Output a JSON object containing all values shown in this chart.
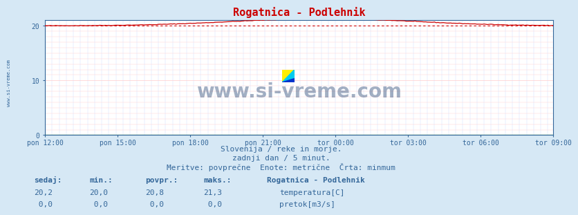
{
  "title": "Rogatnica - Podlehnik",
  "bg_color": "#d6e8f5",
  "plot_bg_color": "#ffffff",
  "grid_color_h": "#ffcccc",
  "grid_color_v": "#ccddff",
  "x_labels": [
    "pon 12:00",
    "pon 15:00",
    "pon 18:00",
    "pon 21:00",
    "tor 00:00",
    "tor 03:00",
    "tor 06:00",
    "tor 09:00"
  ],
  "n_points": 288,
  "ylim": [
    0,
    21
  ],
  "yticks": [
    0,
    10,
    20
  ],
  "temp_min": 20.0,
  "temp_max": 21.3,
  "temp_avg": 20.8,
  "temp_current": 20.2,
  "temp_line_color": "#cc0000",
  "flow_line_color": "#007700",
  "min_line_color": "#cc0000",
  "watermark": "www.si-vreme.com",
  "watermark_color": "#1a3a6a",
  "side_text": "www.si-vreme.com",
  "subtitle1": "Slovenija / reke in morje.",
  "subtitle2": "zadnji dan / 5 minut.",
  "subtitle3": "Meritve: povprečne  Enote: metrične  Črta: minmum",
  "footer_header": "Rogatnica - Podlehnik",
  "col_sedaj": "sedaj:",
  "col_min": "min.:",
  "col_povpr": "povpr.:",
  "col_maks": "maks.:",
  "val_sedaj_t": "20,2",
  "val_min_t": "20,0",
  "val_povpr_t": "20,8",
  "val_maks_t": "21,3",
  "val_sedaj_f": " 0,0",
  "val_min_f": " 0,0",
  "val_povpr_f": " 0,0",
  "val_maks_f": " 0,0",
  "label_temp": "temperatura[C]",
  "label_flow": "pretok[m3/s]",
  "temp_color_box": "#cc0000",
  "flow_color_box": "#00aa00",
  "title_color": "#cc0000",
  "subtitle_color": "#336699",
  "footer_color": "#336699",
  "spine_color": "#336699",
  "tick_color": "#336699"
}
